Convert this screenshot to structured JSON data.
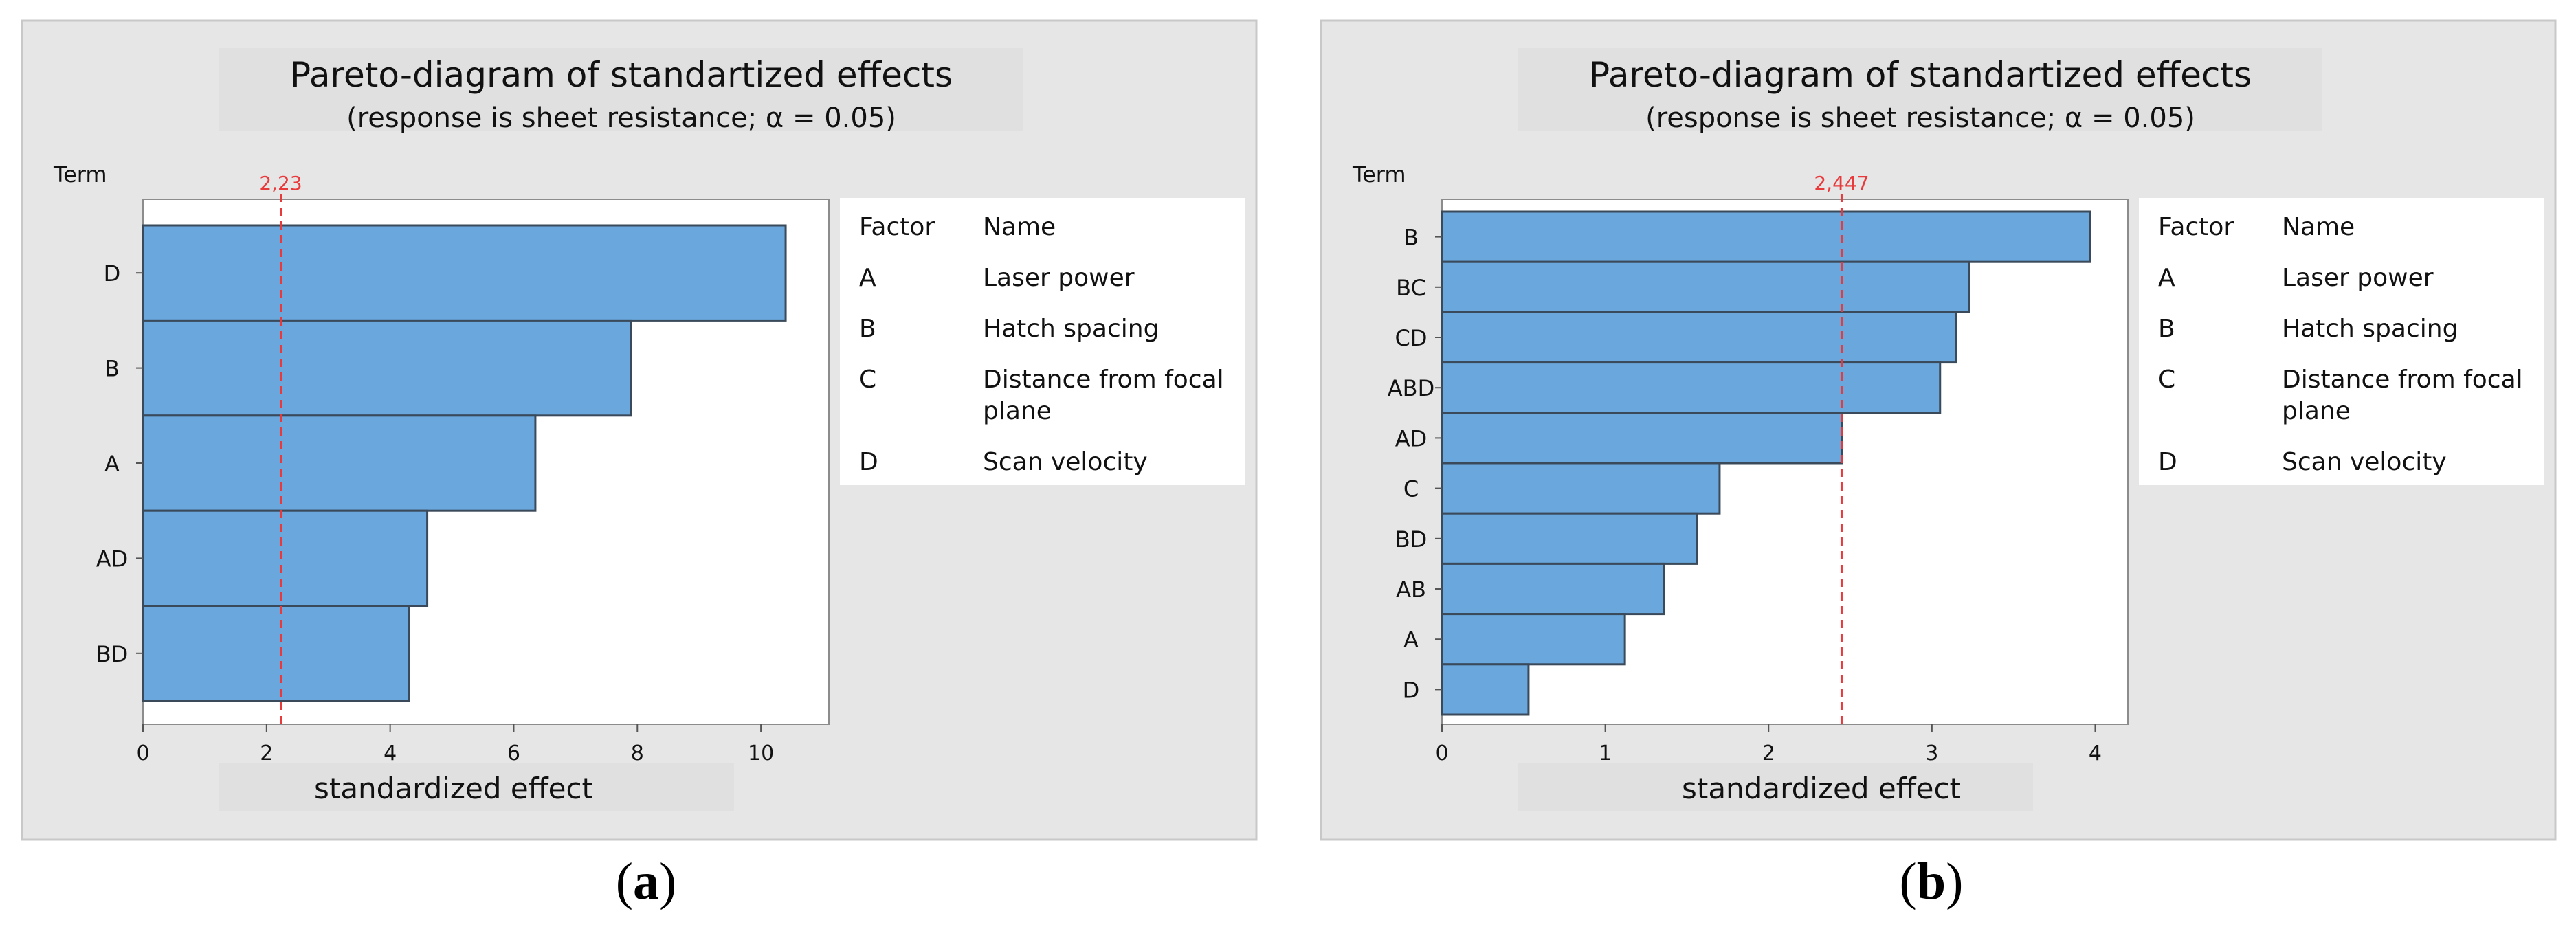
{
  "chart_data": [
    {
      "type": "bar",
      "orientation": "horizontal",
      "panel_label": "a",
      "title": "Pareto-diagram of standartized effects",
      "subtitle": "(response is sheet resistance; α = 0.05)",
      "y_axis_title": "Term",
      "xlabel": "standardized effect",
      "categories": [
        "D",
        "B",
        "A",
        "AD",
        "BD"
      ],
      "values": [
        10.4,
        7.9,
        6.35,
        4.6,
        4.3
      ],
      "xlim": [
        0,
        11.1
      ],
      "xticks": [
        "0",
        "2",
        "4",
        "6",
        "8",
        "10"
      ],
      "reference_value": 2.23,
      "reference_label": "2,23",
      "bar_color": "#6aa7dc",
      "reference_color": "#e8393b",
      "legend_table": {
        "headers": [
          "Factor",
          "Name"
        ],
        "rows": [
          [
            "A",
            "Laser power"
          ],
          [
            "B",
            "Hatch spacing"
          ],
          [
            "C",
            "Distance from focal plane"
          ],
          [
            "D",
            "Scan velocity"
          ]
        ]
      }
    },
    {
      "type": "bar",
      "orientation": "horizontal",
      "panel_label": "b",
      "title": "Pareto-diagram of standartized effects",
      "subtitle": "(response is sheet resistance; α = 0.05)",
      "y_axis_title": "Term",
      "xlabel": "standardized effect",
      "categories": [
        "B",
        "BC",
        "CD",
        "ABD",
        "AD",
        "C",
        "BD",
        "AB",
        "A",
        "D"
      ],
      "values": [
        3.97,
        3.23,
        3.15,
        3.05,
        2.45,
        1.7,
        1.56,
        1.36,
        1.12,
        0.53
      ],
      "xlim": [
        0,
        4.2
      ],
      "xticks": [
        "0",
        "1",
        "2",
        "3",
        "4"
      ],
      "reference_value": 2.447,
      "reference_label": "2,447",
      "bar_color": "#6aa7dc",
      "reference_color": "#e8393b",
      "legend_table": {
        "headers": [
          "Factor",
          "Name"
        ],
        "rows": [
          [
            "A",
            "Laser power"
          ],
          [
            "B",
            "Hatch spacing"
          ],
          [
            "C",
            "Distance from focal plane"
          ],
          [
            "D",
            "Scan velocity"
          ]
        ]
      }
    }
  ],
  "captions": {
    "a": "a",
    "b": "b"
  }
}
